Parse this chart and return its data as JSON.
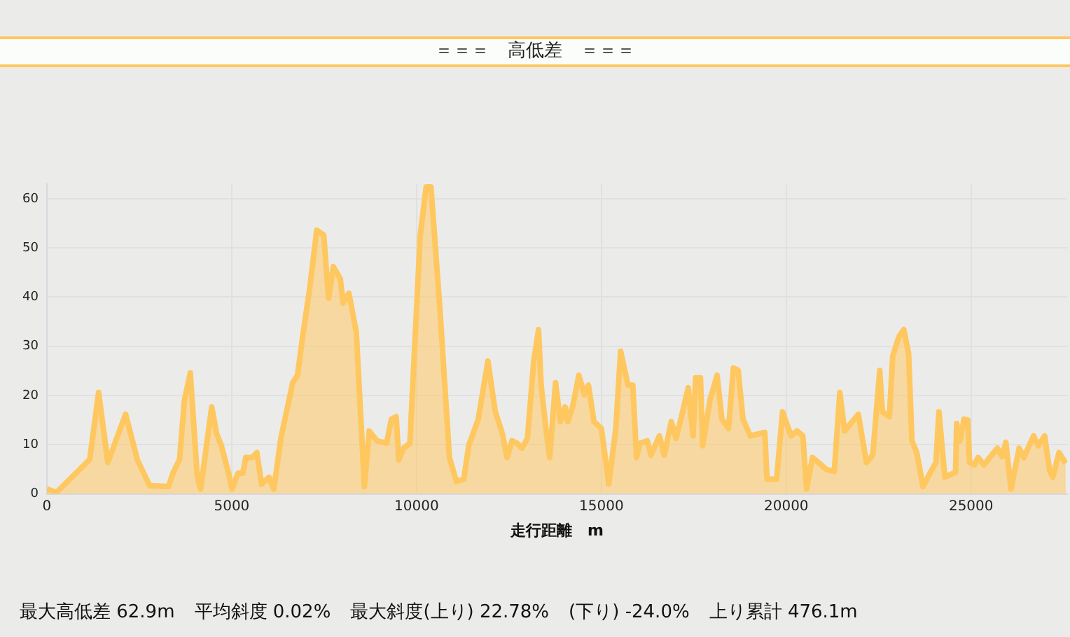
{
  "chart_data": {
    "type": "area",
    "title": "＝＝＝　高低差　＝＝＝",
    "xlabel": "走行距離　m",
    "x": [
      0,
      260,
      1160,
      1400,
      1650,
      2130,
      2450,
      2780,
      3290,
      3420,
      3590,
      3720,
      3880,
      4070,
      4160,
      4460,
      4590,
      4720,
      4910,
      5010,
      5170,
      5300,
      5380,
      5560,
      5680,
      5810,
      6010,
      6140,
      6330,
      6650,
      6780,
      6910,
      7110,
      7300,
      7490,
      7620,
      7750,
      7940,
      8010,
      8170,
      8370,
      8590,
      8720,
      8930,
      9190,
      9320,
      9450,
      9520,
      9650,
      9820,
      10100,
      10260,
      10390,
      10630,
      10890,
      11080,
      11280,
      11410,
      11670,
      11930,
      12130,
      12320,
      12450,
      12580,
      12720,
      12850,
      13000,
      13170,
      13300,
      13370,
      13500,
      13600,
      13760,
      13890,
      14020,
      14090,
      14220,
      14390,
      14540,
      14650,
      14800,
      15000,
      15200,
      15390,
      15520,
      15720,
      15850,
      15950,
      16040,
      16240,
      16340,
      16570,
      16700,
      16890,
      17020,
      17150,
      17350,
      17480,
      17550,
      17680,
      17740,
      17940,
      18130,
      18260,
      18440,
      18570,
      18700,
      18830,
      19030,
      19420,
      19480,
      19740,
      19900,
      20130,
      20290,
      20450,
      20550,
      20710,
      21100,
      21300,
      21450,
      21580,
      21950,
      22170,
      22340,
      22530,
      22600,
      22790,
      22880,
      23050,
      23180,
      23310,
      23400,
      23530,
      23700,
      23900,
      24050,
      24130,
      24290,
      24580,
      24610,
      24700,
      24810,
      24910,
      24960,
      25090,
      25190,
      25350,
      25560,
      25710,
      25840,
      25940,
      26080,
      26300,
      26430,
      26600,
      26690,
      26820,
      26990,
      27120,
      27210,
      27380,
      27560
    ],
    "series": [
      {
        "color": "#ffc75f",
        "values": [
          1,
          0.3,
          7,
          20.6,
          6.4,
          16.2,
          6.9,
          1.7,
          1.5,
          4.4,
          7,
          19,
          24.6,
          3.4,
          1,
          17.7,
          12.3,
          9.8,
          4.4,
          1,
          4.2,
          4.2,
          7.4,
          7.4,
          8.4,
          2,
          3.4,
          1,
          11.3,
          22.6,
          24.1,
          31.5,
          41.8,
          53.6,
          52.6,
          39.8,
          46.2,
          43.7,
          38.8,
          40.8,
          32.9,
          1.5,
          12.8,
          10.8,
          10.3,
          15.2,
          15.7,
          6.9,
          9.3,
          10.3,
          52.6,
          62.4,
          62.4,
          37.9,
          7.4,
          2.5,
          3,
          9.8,
          15.2,
          27,
          16.7,
          12.3,
          7.4,
          10.8,
          10.3,
          9.3,
          11.3,
          27,
          33.4,
          22.1,
          13.3,
          7.4,
          22.6,
          14.7,
          17.7,
          14.7,
          17.7,
          24.1,
          20.2,
          22.1,
          14.7,
          13.3,
          2,
          13.3,
          29,
          22.1,
          22.1,
          7.4,
          10.3,
          10.8,
          7.9,
          11.8,
          7.9,
          14.7,
          11.3,
          15.2,
          21.6,
          11.8,
          23.6,
          23.6,
          9.8,
          19.2,
          24.1,
          15.2,
          13.3,
          25.6,
          25.1,
          15.2,
          11.8,
          12.5,
          3,
          3,
          16.7,
          11.8,
          12.8,
          11.8,
          1,
          7.4,
          4.9,
          4.6,
          20.6,
          12.8,
          16.2,
          6.4,
          7.9,
          25.1,
          16.7,
          15.7,
          28,
          32,
          33.4,
          28.5,
          10.8,
          8.4,
          1.5,
          4.4,
          6.4,
          16.7,
          3.4,
          4.4,
          14.3,
          10.8,
          15.2,
          15,
          6.4,
          5.9,
          7.4,
          5.9,
          7.9,
          9.3,
          7.6,
          10.5,
          1,
          9.3,
          7.4,
          10.3,
          11.8,
          9.8,
          11.8,
          4.9,
          3.4,
          8.4,
          6.2
        ]
      }
    ],
    "xlim": [
      0,
      27600
    ],
    "xticks": [
      0,
      5000,
      10000,
      15000,
      20000,
      25000
    ],
    "ylim": [
      0,
      63
    ],
    "yticks": [
      0,
      10,
      20,
      30,
      40,
      50,
      60
    ],
    "grid": true,
    "annotations": [
      "最大高低差 62.9m",
      "平均斜度 0.02%",
      "最大斜度(上り) 22.78%",
      "(下り) -24.0%",
      "上り累計 476.1m"
    ]
  }
}
